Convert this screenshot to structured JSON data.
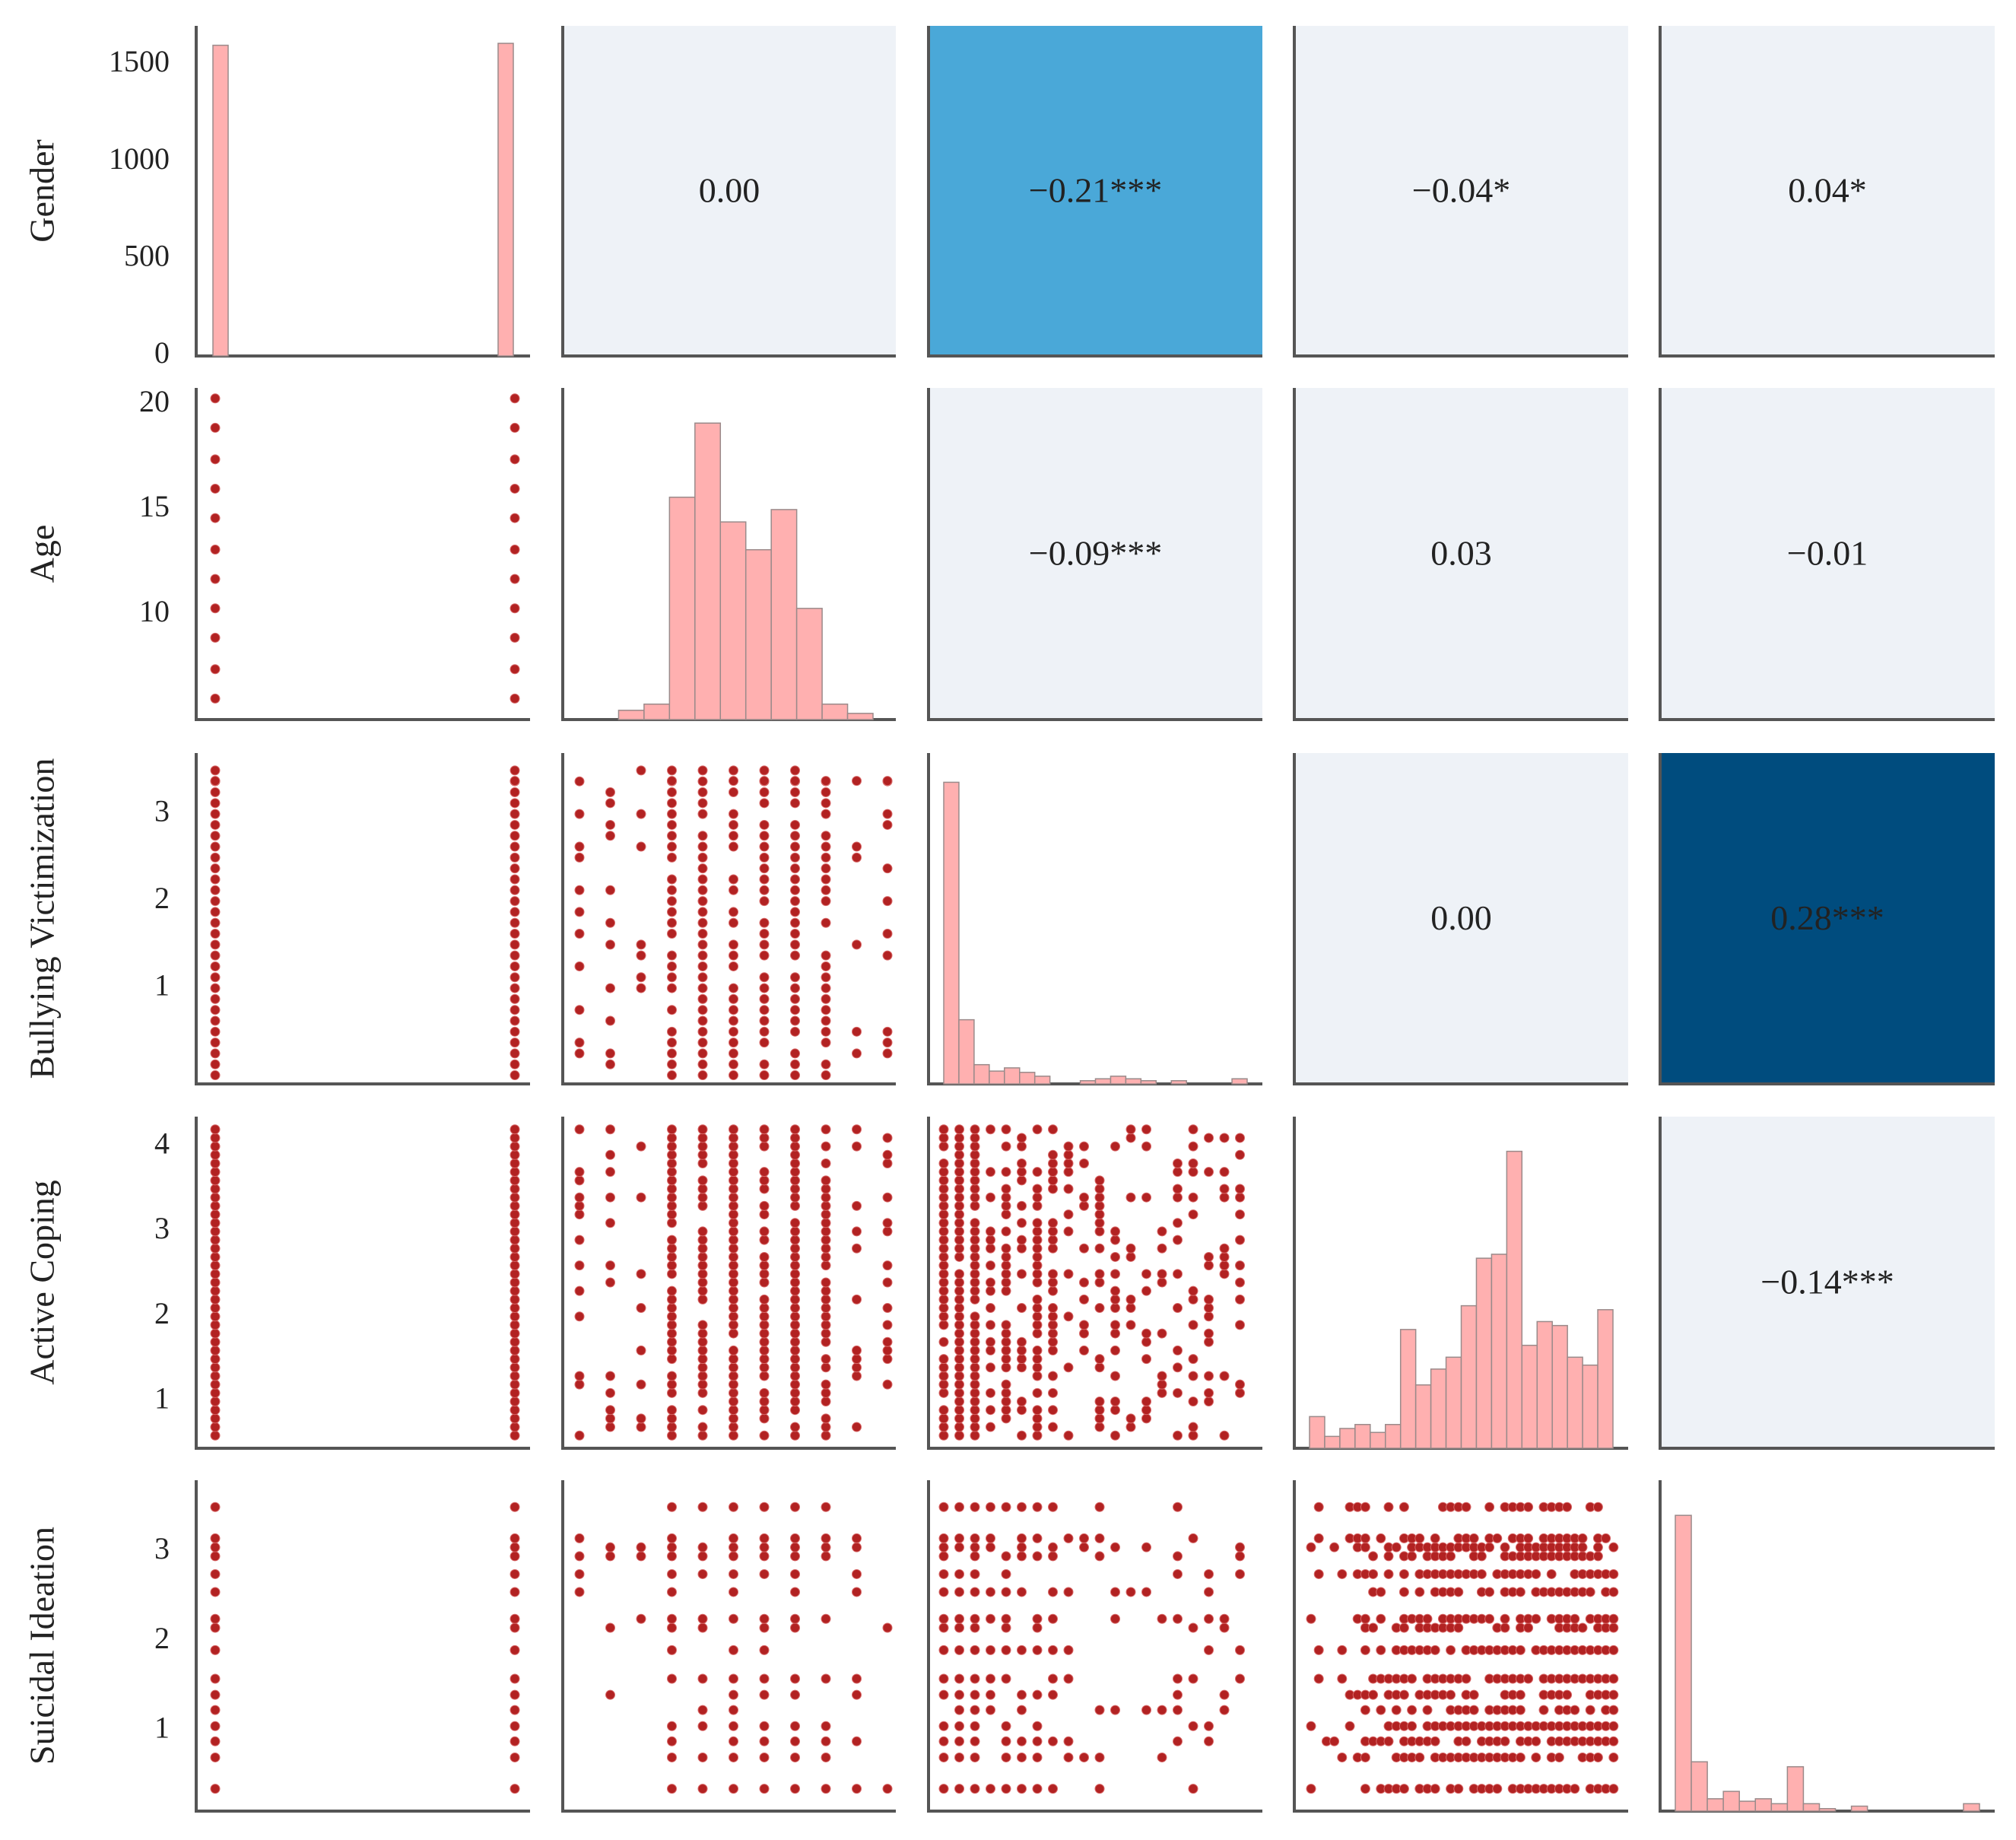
{
  "chart_data": {
    "type": "pairplot",
    "variables": [
      "Gender",
      "Age",
      "Bullying Victimization",
      "Active Coping",
      "Suicidal Ideation"
    ],
    "colors": {
      "hist_fill": "#ffb0b0",
      "hist_edge": "#9a8a8a",
      "point": "#b22222",
      "corr_neutral": "#eef2f7",
      "corr_medium": "#4aa8d8",
      "corr_strong": "#004c7e",
      "axis": "#555555"
    },
    "y_ticks": [
      {
        "labels": [
          "1500",
          "1000",
          "500",
          "0"
        ],
        "values": [
          1500,
          1000,
          500,
          0
        ],
        "range": [
          0,
          1700
        ]
      },
      {
        "labels": [
          "20",
          "15",
          "10"
        ],
        "values": [
          20,
          15,
          10
        ],
        "range": [
          5,
          20.8
        ]
      },
      {
        "labels": [
          "3",
          "2",
          "1"
        ],
        "values": [
          3,
          2,
          1
        ],
        "range": [
          -0.1,
          3.7
        ]
      },
      {
        "labels": [
          "4",
          "3",
          "2",
          "1"
        ],
        "values": [
          4,
          3,
          2,
          1
        ],
        "range": [
          0.45,
          4.35
        ]
      },
      {
        "labels": [
          "3",
          "2",
          "1"
        ],
        "values": [
          3,
          2,
          1
        ],
        "range": [
          0.1,
          3.8
        ]
      }
    ],
    "correlations": [
      {
        "row": 0,
        "col": 1,
        "label": "0.00",
        "level": "neutral"
      },
      {
        "row": 0,
        "col": 2,
        "label": "−0.21***",
        "level": "medium"
      },
      {
        "row": 0,
        "col": 3,
        "label": "−0.04*",
        "level": "neutral"
      },
      {
        "row": 0,
        "col": 4,
        "label": "0.04*",
        "level": "neutral"
      },
      {
        "row": 1,
        "col": 2,
        "label": "−0.09***",
        "level": "neutral"
      },
      {
        "row": 1,
        "col": 3,
        "label": "0.03",
        "level": "neutral"
      },
      {
        "row": 1,
        "col": 4,
        "label": "−0.01",
        "level": "neutral"
      },
      {
        "row": 2,
        "col": 3,
        "label": "0.00",
        "level": "neutral"
      },
      {
        "row": 2,
        "col": 4,
        "label": "0.28***",
        "level": "strong"
      },
      {
        "row": 3,
        "col": 4,
        "label": "−0.14***",
        "level": "neutral"
      }
    ],
    "histograms": [
      {
        "var": "Gender",
        "counts": [
          1600,
          0,
          0,
          0,
          0,
          0,
          0,
          0,
          0,
          1610
        ],
        "max": 1700
      },
      {
        "var": "Age",
        "counts": [
          0,
          3,
          5,
          72,
          96,
          64,
          55,
          68,
          36,
          5,
          2
        ],
        "max": 100
      },
      {
        "var": "Bullying Victimization",
        "counts": [
          470,
          100,
          30,
          20,
          25,
          18,
          12,
          0,
          0,
          5,
          8,
          12,
          8,
          5,
          0,
          5,
          0,
          0,
          0,
          8
        ],
        "max": 480
      },
      {
        "var": "Active Coping",
        "counts": [
          8,
          3,
          5,
          6,
          4,
          6,
          30,
          16,
          20,
          23,
          36,
          48,
          49,
          75,
          26,
          32,
          31,
          23,
          21,
          35
        ],
        "max": 78
      },
      {
        "var": "Suicidal Ideation",
        "counts": [
          120,
          20,
          5,
          8,
          4,
          5,
          3,
          18,
          3,
          1,
          0,
          2,
          0,
          0,
          0,
          0,
          0,
          0,
          3
        ],
        "max": 125
      }
    ]
  }
}
